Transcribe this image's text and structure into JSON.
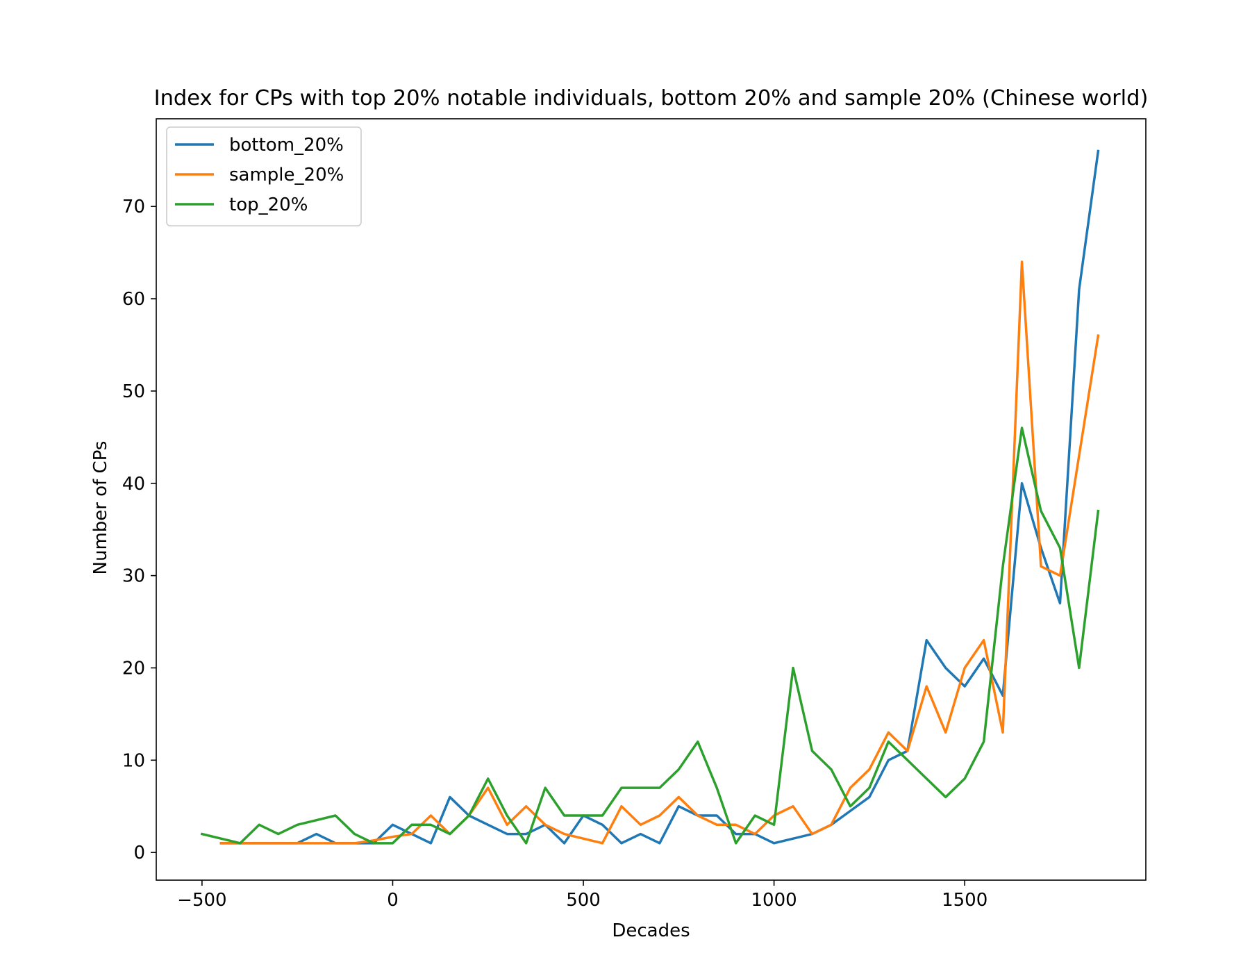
{
  "chart_data": {
    "type": "line",
    "title": "Index for CPs with top 20% notable individuals, bottom 20% and sample 20% (Chinese world)",
    "xlabel": "Decades",
    "ylabel": "Number of CPs",
    "xlim": [
      -620,
      1975
    ],
    "ylim": [
      -3,
      79.5
    ],
    "xticks": [
      -500,
      0,
      500,
      1000,
      1500
    ],
    "xtick_labels": [
      "−500",
      "0",
      "500",
      "1000",
      "1500"
    ],
    "yticks": [
      0,
      10,
      20,
      30,
      40,
      50,
      60,
      70
    ],
    "ytick_labels": [
      "0",
      "10",
      "20",
      "30",
      "40",
      "50",
      "60",
      "70"
    ],
    "grid": false,
    "legend_position": "upper-left",
    "series": [
      {
        "name": "bottom_20%",
        "color": "#1f77b4",
        "points": [
          [
            -450,
            1
          ],
          [
            -400,
            1
          ],
          [
            -350,
            1
          ],
          [
            -300,
            1
          ],
          [
            -250,
            1
          ],
          [
            -200,
            2
          ],
          [
            -150,
            1
          ],
          [
            -100,
            1
          ],
          [
            -50,
            1
          ],
          [
            0,
            3
          ],
          [
            50,
            2
          ],
          [
            100,
            1
          ],
          [
            150,
            6
          ],
          [
            200,
            4
          ],
          [
            250,
            3
          ],
          [
            300,
            2
          ],
          [
            350,
            2
          ],
          [
            400,
            3
          ],
          [
            450,
            1
          ],
          [
            500,
            4
          ],
          [
            550,
            3
          ],
          [
            600,
            1
          ],
          [
            650,
            2
          ],
          [
            700,
            1
          ],
          [
            750,
            5
          ],
          [
            800,
            4
          ],
          [
            850,
            4
          ],
          [
            900,
            2
          ],
          [
            950,
            2
          ],
          [
            1000,
            1
          ],
          [
            1050,
            1.5
          ],
          [
            1100,
            2
          ],
          [
            1150,
            3
          ],
          [
            1200,
            4.5
          ],
          [
            1250,
            6
          ],
          [
            1300,
            10
          ],
          [
            1350,
            11
          ],
          [
            1400,
            23
          ],
          [
            1450,
            20
          ],
          [
            1500,
            18
          ],
          [
            1550,
            21
          ],
          [
            1600,
            17
          ],
          [
            1650,
            40
          ],
          [
            1700,
            33
          ],
          [
            1750,
            27
          ],
          [
            1800,
            61
          ],
          [
            1850,
            76
          ]
        ]
      },
      {
        "name": "sample_20%",
        "color": "#ff7f0e",
        "points": [
          [
            -450,
            1
          ],
          [
            -400,
            1
          ],
          [
            -350,
            1
          ],
          [
            -300,
            1
          ],
          [
            -250,
            1
          ],
          [
            -200,
            1
          ],
          [
            -150,
            1
          ],
          [
            -100,
            1
          ],
          [
            -50,
            1.3
          ],
          [
            0,
            1.7
          ],
          [
            50,
            2
          ],
          [
            100,
            4
          ],
          [
            150,
            2
          ],
          [
            200,
            4
          ],
          [
            250,
            7
          ],
          [
            300,
            3
          ],
          [
            350,
            5
          ],
          [
            400,
            3
          ],
          [
            450,
            2
          ],
          [
            500,
            1.5
          ],
          [
            550,
            1
          ],
          [
            600,
            5
          ],
          [
            650,
            3
          ],
          [
            700,
            4
          ],
          [
            750,
            6
          ],
          [
            800,
            4
          ],
          [
            850,
            3
          ],
          [
            900,
            3
          ],
          [
            950,
            2
          ],
          [
            1000,
            4
          ],
          [
            1050,
            5
          ],
          [
            1100,
            2
          ],
          [
            1150,
            3
          ],
          [
            1200,
            7
          ],
          [
            1250,
            9
          ],
          [
            1300,
            13
          ],
          [
            1350,
            11
          ],
          [
            1400,
            18
          ],
          [
            1450,
            13
          ],
          [
            1500,
            20
          ],
          [
            1550,
            23
          ],
          [
            1600,
            13
          ],
          [
            1650,
            64
          ],
          [
            1700,
            31
          ],
          [
            1750,
            30
          ],
          [
            1800,
            43
          ],
          [
            1850,
            56
          ]
        ]
      },
      {
        "name": "top_20%",
        "color": "#2ca02c",
        "points": [
          [
            -500,
            2
          ],
          [
            -450,
            1.5
          ],
          [
            -400,
            1
          ],
          [
            -350,
            3
          ],
          [
            -300,
            2
          ],
          [
            -250,
            3
          ],
          [
            -200,
            3.5
          ],
          [
            -150,
            4
          ],
          [
            -100,
            2
          ],
          [
            -50,
            1
          ],
          [
            0,
            1
          ],
          [
            50,
            3
          ],
          [
            100,
            3
          ],
          [
            150,
            2
          ],
          [
            200,
            4
          ],
          [
            250,
            8
          ],
          [
            300,
            4
          ],
          [
            350,
            1
          ],
          [
            400,
            7
          ],
          [
            450,
            4
          ],
          [
            500,
            4
          ],
          [
            550,
            4
          ],
          [
            600,
            7
          ],
          [
            650,
            7
          ],
          [
            700,
            7
          ],
          [
            750,
            9
          ],
          [
            800,
            12
          ],
          [
            850,
            7
          ],
          [
            900,
            1
          ],
          [
            950,
            4
          ],
          [
            1000,
            3
          ],
          [
            1050,
            20
          ],
          [
            1100,
            11
          ],
          [
            1150,
            9
          ],
          [
            1200,
            5
          ],
          [
            1250,
            7
          ],
          [
            1300,
            12
          ],
          [
            1350,
            10
          ],
          [
            1400,
            8
          ],
          [
            1450,
            6
          ],
          [
            1500,
            8
          ],
          [
            1550,
            12
          ],
          [
            1600,
            31
          ],
          [
            1650,
            46
          ],
          [
            1700,
            37
          ],
          [
            1750,
            33
          ],
          [
            1800,
            20
          ],
          [
            1850,
            37
          ]
        ]
      }
    ]
  }
}
